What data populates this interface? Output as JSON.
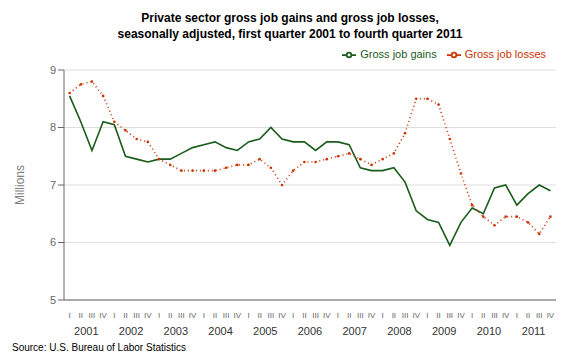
{
  "chart_data": {
    "type": "line",
    "title": "Private sector gross job gains and gross job losses,\nseasonally adjusted, first quarter 2001 to fourth quarter 2011",
    "y_label": "Millions",
    "annotations": [
      "Source: U.S. Bureau of Labor Statistics"
    ],
    "categories": [
      "I",
      "II",
      "III",
      "IV",
      "I",
      "II",
      "III",
      "IV",
      "I",
      "II",
      "III",
      "IV",
      "I",
      "II",
      "III",
      "IV",
      "I",
      "II",
      "III",
      "IV",
      "I",
      "II",
      "III",
      "IV",
      "I",
      "II",
      "III",
      "IV",
      "I",
      "II",
      "III",
      "IV",
      "I",
      "II",
      "III",
      "IV",
      "I",
      "II",
      "III",
      "IV",
      "I",
      "II",
      "III",
      "IV"
    ],
    "groups": [
      2001,
      2002,
      2003,
      2004,
      2005,
      2006,
      2007,
      2008,
      2009,
      2010,
      2011
    ],
    "series": [
      {
        "name": "Gross job gains",
        "color": "#1a5c1a",
        "line_style": "solid",
        "values": [
          8.55,
          8.1,
          7.6,
          8.1,
          8.05,
          7.5,
          7.45,
          7.4,
          7.45,
          7.45,
          7.55,
          7.65,
          7.7,
          7.75,
          7.65,
          7.6,
          7.75,
          7.8,
          8.0,
          7.8,
          7.75,
          7.75,
          7.6,
          7.75,
          7.75,
          7.7,
          7.3,
          7.25,
          7.25,
          7.3,
          7.05,
          6.55,
          6.4,
          6.35,
          5.95,
          6.35,
          6.6,
          6.5,
          6.95,
          7.0,
          6.65,
          6.85,
          7.0,
          6.9
        ]
      },
      {
        "name": "Gross job losses",
        "color": "#cc3300",
        "line_style": "dotted",
        "marker": "circle",
        "values": [
          8.6,
          8.75,
          8.8,
          8.55,
          8.1,
          7.95,
          7.8,
          7.75,
          7.45,
          7.35,
          7.25,
          7.25,
          7.25,
          7.25,
          7.3,
          7.35,
          7.35,
          7.45,
          7.3,
          7.0,
          7.25,
          7.4,
          7.4,
          7.45,
          7.5,
          7.55,
          7.45,
          7.35,
          7.45,
          7.55,
          7.9,
          8.5,
          8.5,
          8.4,
          7.8,
          7.2,
          6.65,
          6.45,
          6.3,
          6.45,
          6.45,
          6.35,
          6.15,
          6.45
        ]
      }
    ],
    "ylim": [
      5,
      9
    ],
    "yticks": [
      5,
      6,
      7,
      8,
      9
    ],
    "grid": true,
    "legend": "upper right"
  }
}
